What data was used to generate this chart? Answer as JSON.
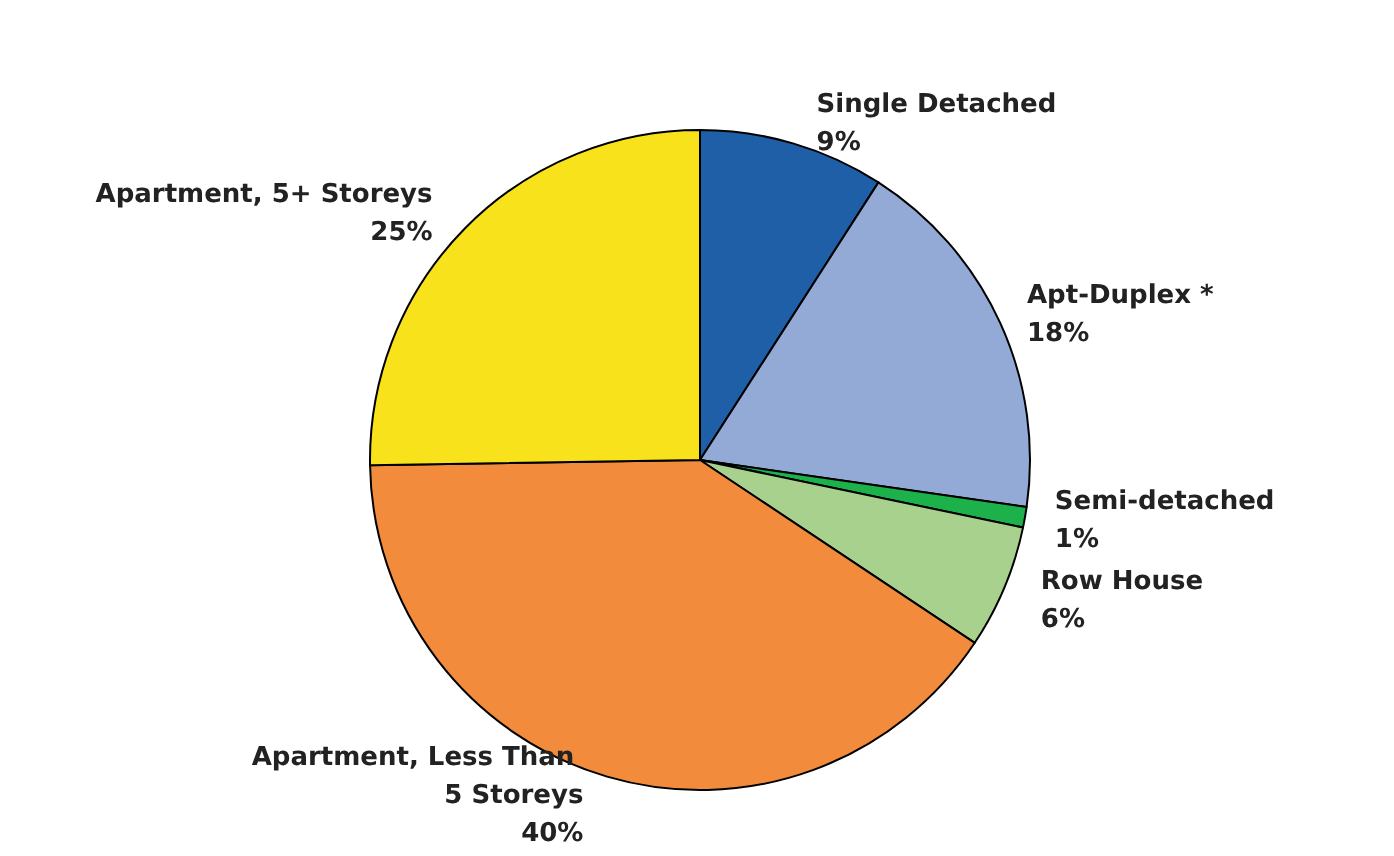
{
  "chart_data": {
    "type": "pie",
    "categories": [
      "Single Detached",
      "Apt-Duplex *",
      "Semi-detached",
      "Row House",
      "Apartment, Less Than 5 Storeys",
      "Apartment, 5+ Storeys"
    ],
    "values": [
      9,
      18,
      1,
      6,
      40,
      25
    ],
    "value_labels": [
      "9%",
      "18%",
      "1%",
      "6%",
      "40%",
      "25%"
    ],
    "colors": [
      "#1f5fa8",
      "#93a9d6",
      "#1db14b",
      "#a9d18e",
      "#f28c3c",
      "#f8e21c"
    ],
    "legend": false
  }
}
